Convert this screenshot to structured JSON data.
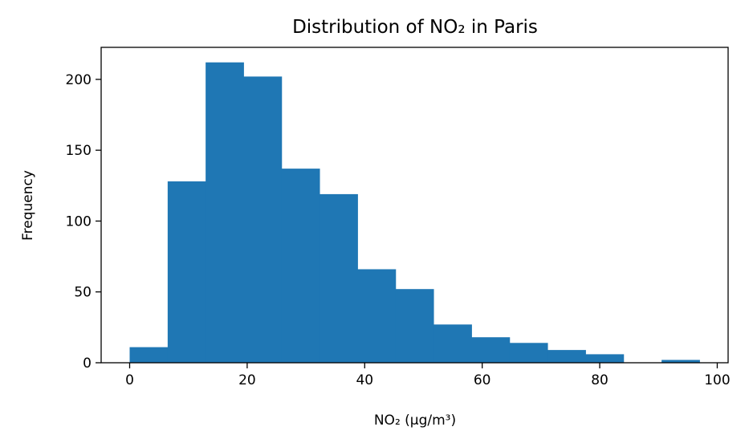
{
  "chart_data": {
    "type": "bar",
    "subtype": "histogram",
    "title": "Distribution of NO₂ in Paris",
    "xlabel": "NO₂ (µg/m³)",
    "ylabel": "Frequency",
    "bins": [
      {
        "x0": 0.0,
        "x1": 6.47,
        "count": 11
      },
      {
        "x0": 6.47,
        "x1": 12.93,
        "count": 128
      },
      {
        "x0": 12.93,
        "x1": 19.4,
        "count": 212
      },
      {
        "x0": 19.4,
        "x1": 25.87,
        "count": 202
      },
      {
        "x0": 25.87,
        "x1": 32.33,
        "count": 137
      },
      {
        "x0": 32.33,
        "x1": 38.8,
        "count": 119
      },
      {
        "x0": 38.8,
        "x1": 45.27,
        "count": 66
      },
      {
        "x0": 45.27,
        "x1": 51.73,
        "count": 52
      },
      {
        "x0": 51.73,
        "x1": 58.2,
        "count": 27
      },
      {
        "x0": 58.2,
        "x1": 64.67,
        "count": 18
      },
      {
        "x0": 64.67,
        "x1": 71.13,
        "count": 14
      },
      {
        "x0": 71.13,
        "x1": 77.6,
        "count": 9
      },
      {
        "x0": 77.6,
        "x1": 84.07,
        "count": 6
      },
      {
        "x0": 84.07,
        "x1": 90.53,
        "count": 0
      },
      {
        "x0": 90.53,
        "x1": 97.0,
        "count": 2
      }
    ],
    "xlim": [
      -4.85,
      101.85
    ],
    "ylim": [
      0,
      222.6
    ],
    "xticks": [
      0,
      20,
      40,
      60,
      80,
      100
    ],
    "yticks": [
      0,
      50,
      100,
      150,
      200
    ],
    "bar_color": "#1f77b4",
    "grid": false,
    "legend": "none"
  }
}
